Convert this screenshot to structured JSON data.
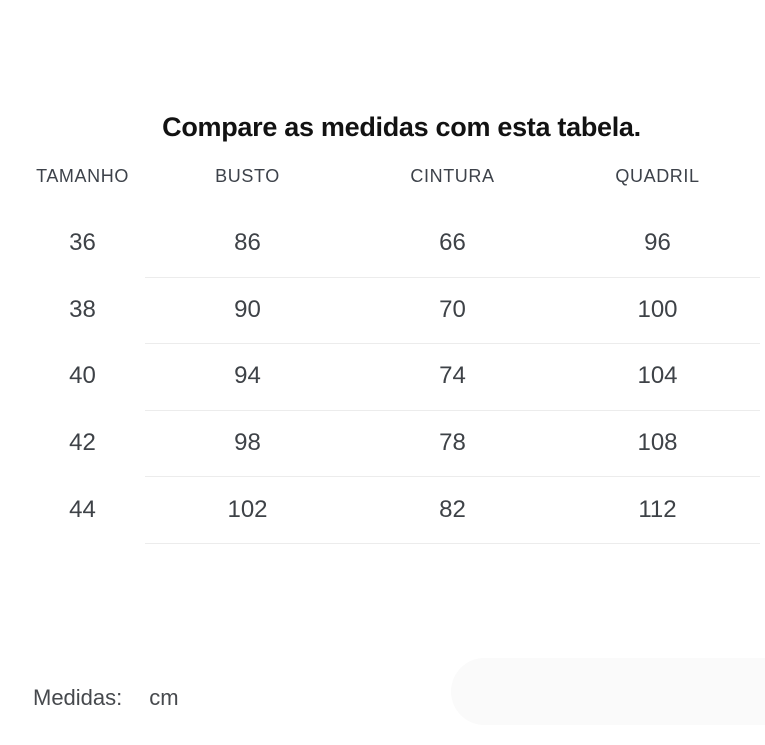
{
  "title": "Compare as medidas com esta tabela.",
  "chart_data": {
    "type": "table",
    "title": "Compare as medidas com esta tabela.",
    "columns": [
      "TAMANHO",
      "BUSTO",
      "CINTURA",
      "QUADRIL"
    ],
    "rows": [
      [
        36,
        86,
        66,
        96
      ],
      [
        38,
        90,
        70,
        100
      ],
      [
        40,
        94,
        74,
        104
      ],
      [
        42,
        98,
        78,
        108
      ],
      [
        44,
        102,
        82,
        112
      ]
    ],
    "units": "cm",
    "layout": {
      "grid": "horizontal dividers under measure columns only",
      "header_style": "uppercase"
    }
  },
  "footer": {
    "label": "Medidas:",
    "unit": "cm"
  },
  "colors": {
    "title_text": "#121212",
    "header_text": "#3d424a",
    "text": "#3e4247",
    "divider": "#ececec",
    "pill": "#fafafa",
    "background": "#ffffff"
  }
}
